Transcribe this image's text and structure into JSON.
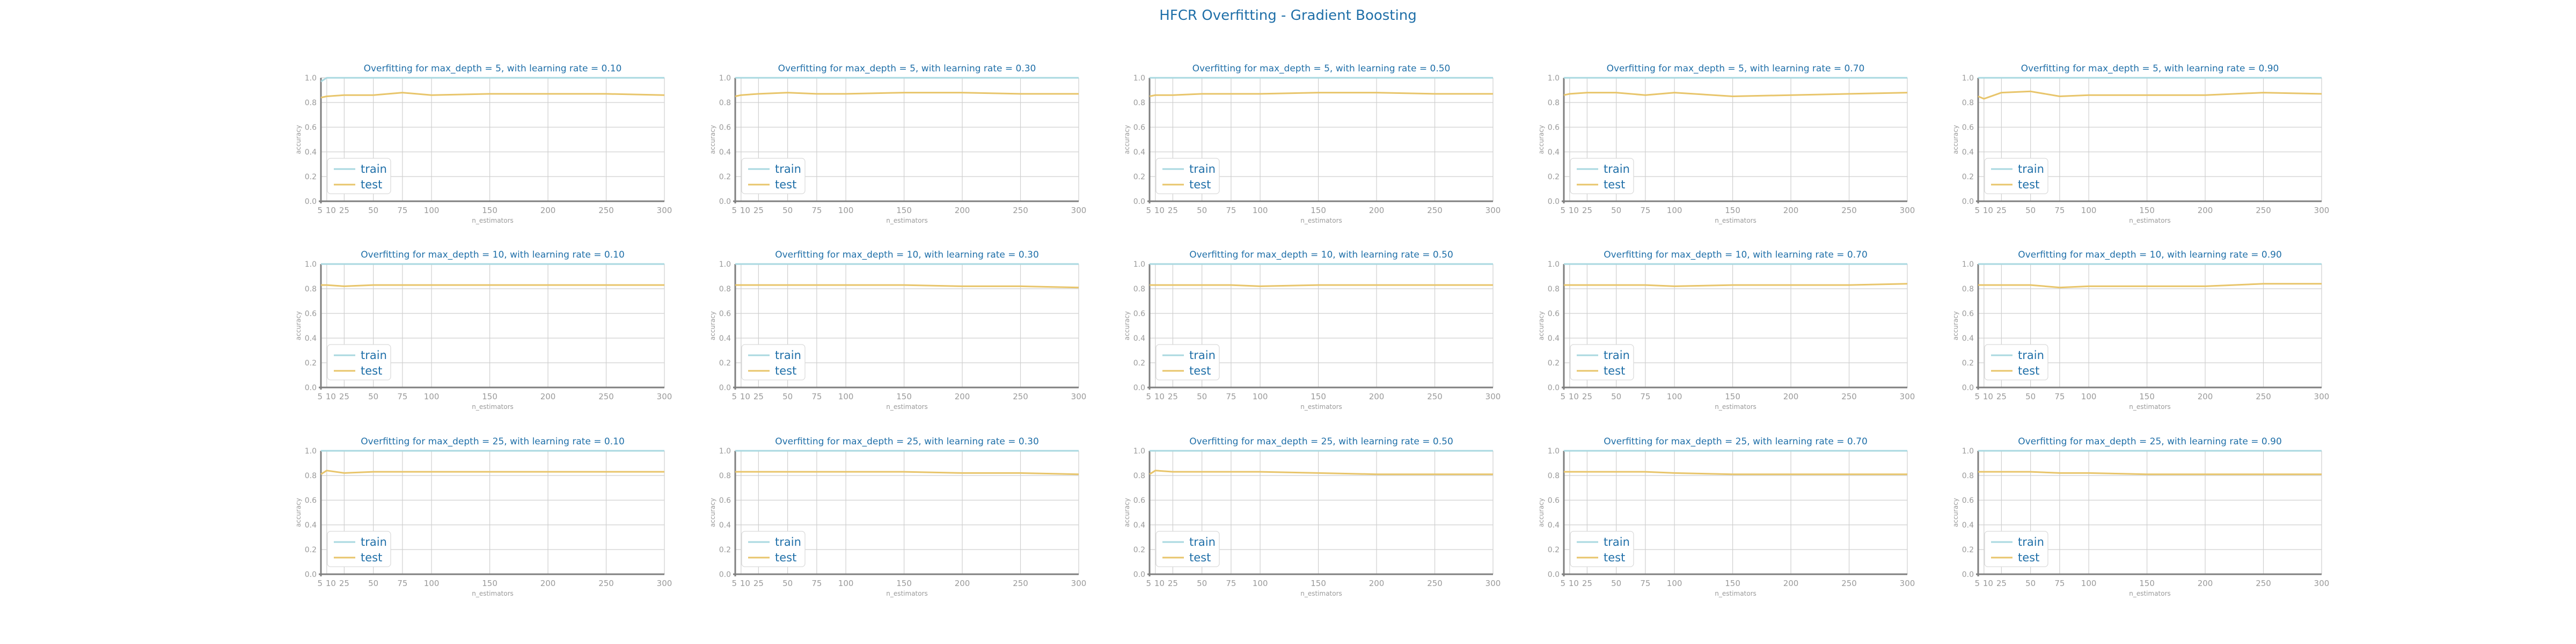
{
  "figure": {
    "title": "HFCR Overfitting - Gradient Boosting"
  },
  "style": {
    "train_color": "#A9D8E0",
    "test_color": "#E8C56B",
    "title_color": "#1F6FA8",
    "label_color": "#9a9a9a",
    "grid_color": "#cfcfcf",
    "axis_color": "#7f7f7f"
  },
  "chart_data": [
    {
      "type": "line",
      "title": "Overfitting for max_depth = 5, with learning rate = 0.10",
      "xlabel": "n_estimators",
      "ylabel": "accuracy",
      "xticks": [
        5,
        10,
        25,
        50,
        75,
        100,
        150,
        200,
        250,
        300
      ],
      "yticks": [
        0.0,
        0.2,
        0.4,
        0.6,
        0.8,
        1.0
      ],
      "xlim": [
        5,
        300
      ],
      "ylim": [
        0,
        1
      ],
      "grid": true,
      "legend": "lower-left",
      "x": [
        5,
        10,
        25,
        50,
        75,
        100,
        150,
        200,
        250,
        300
      ],
      "series": [
        {
          "name": "train",
          "values": [
            0.97,
            1.0,
            1.0,
            1.0,
            1.0,
            1.0,
            1.0,
            1.0,
            1.0,
            1.0
          ]
        },
        {
          "name": "test",
          "values": [
            0.84,
            0.85,
            0.86,
            0.86,
            0.88,
            0.86,
            0.87,
            0.87,
            0.87,
            0.86
          ]
        }
      ]
    },
    {
      "type": "line",
      "title": "Overfitting for max_depth = 5, with learning rate = 0.30",
      "xlabel": "n_estimators",
      "ylabel": "accuracy",
      "xticks": [
        5,
        10,
        25,
        50,
        75,
        100,
        150,
        200,
        250,
        300
      ],
      "yticks": [
        0.0,
        0.2,
        0.4,
        0.6,
        0.8,
        1.0
      ],
      "xlim": [
        5,
        300
      ],
      "ylim": [
        0,
        1
      ],
      "grid": true,
      "legend": "lower-left",
      "x": [
        5,
        10,
        25,
        50,
        75,
        100,
        150,
        200,
        250,
        300
      ],
      "series": [
        {
          "name": "train",
          "values": [
            1.0,
            1.0,
            1.0,
            1.0,
            1.0,
            1.0,
            1.0,
            1.0,
            1.0,
            1.0
          ]
        },
        {
          "name": "test",
          "values": [
            0.85,
            0.86,
            0.87,
            0.88,
            0.87,
            0.87,
            0.88,
            0.88,
            0.87,
            0.87
          ]
        }
      ]
    },
    {
      "type": "line",
      "title": "Overfitting for max_depth = 5, with learning rate = 0.50",
      "xlabel": "n_estimators",
      "ylabel": "accuracy",
      "xticks": [
        5,
        10,
        25,
        50,
        75,
        100,
        150,
        200,
        250,
        300
      ],
      "yticks": [
        0.0,
        0.2,
        0.4,
        0.6,
        0.8,
        1.0
      ],
      "xlim": [
        5,
        300
      ],
      "ylim": [
        0,
        1
      ],
      "grid": true,
      "legend": "lower-left",
      "x": [
        5,
        10,
        25,
        50,
        75,
        100,
        150,
        200,
        250,
        300
      ],
      "series": [
        {
          "name": "train",
          "values": [
            1.0,
            1.0,
            1.0,
            1.0,
            1.0,
            1.0,
            1.0,
            1.0,
            1.0,
            1.0
          ]
        },
        {
          "name": "test",
          "values": [
            0.85,
            0.86,
            0.86,
            0.87,
            0.87,
            0.87,
            0.88,
            0.88,
            0.87,
            0.87
          ]
        }
      ]
    },
    {
      "type": "line",
      "title": "Overfitting for max_depth = 5, with learning rate = 0.70",
      "xlabel": "n_estimators",
      "ylabel": "accuracy",
      "xticks": [
        5,
        10,
        25,
        50,
        75,
        100,
        150,
        200,
        250,
        300
      ],
      "yticks": [
        0.0,
        0.2,
        0.4,
        0.6,
        0.8,
        1.0
      ],
      "xlim": [
        5,
        300
      ],
      "ylim": [
        0,
        1
      ],
      "grid": true,
      "legend": "lower-left",
      "x": [
        5,
        10,
        25,
        50,
        75,
        100,
        150,
        200,
        250,
        300
      ],
      "series": [
        {
          "name": "train",
          "values": [
            1.0,
            1.0,
            1.0,
            1.0,
            1.0,
            1.0,
            1.0,
            1.0,
            1.0,
            1.0
          ]
        },
        {
          "name": "test",
          "values": [
            0.86,
            0.87,
            0.88,
            0.88,
            0.86,
            0.88,
            0.85,
            0.86,
            0.87,
            0.88
          ]
        }
      ]
    },
    {
      "type": "line",
      "title": "Overfitting for max_depth = 5, with learning rate = 0.90",
      "xlabel": "n_estimators",
      "ylabel": "accuracy",
      "xticks": [
        5,
        10,
        25,
        50,
        75,
        100,
        150,
        200,
        250,
        300
      ],
      "yticks": [
        0.0,
        0.2,
        0.4,
        0.6,
        0.8,
        1.0
      ],
      "xlim": [
        5,
        300
      ],
      "ylim": [
        0,
        1
      ],
      "grid": true,
      "legend": "lower-left",
      "x": [
        5,
        10,
        25,
        50,
        75,
        100,
        150,
        200,
        250,
        300
      ],
      "series": [
        {
          "name": "train",
          "values": [
            1.0,
            1.0,
            1.0,
            1.0,
            1.0,
            1.0,
            1.0,
            1.0,
            1.0,
            1.0
          ]
        },
        {
          "name": "test",
          "values": [
            0.85,
            0.83,
            0.88,
            0.89,
            0.85,
            0.86,
            0.86,
            0.86,
            0.88,
            0.87
          ]
        }
      ]
    },
    {
      "type": "line",
      "title": "Overfitting for max_depth = 10, with learning rate = 0.10",
      "xlabel": "n_estimators",
      "ylabel": "accuracy",
      "xticks": [
        5,
        10,
        25,
        50,
        75,
        100,
        150,
        200,
        250,
        300
      ],
      "yticks": [
        0.0,
        0.2,
        0.4,
        0.6,
        0.8,
        1.0
      ],
      "xlim": [
        5,
        300
      ],
      "ylim": [
        0,
        1
      ],
      "grid": true,
      "legend": "lower-left",
      "x": [
        5,
        10,
        25,
        50,
        75,
        100,
        150,
        200,
        250,
        300
      ],
      "series": [
        {
          "name": "train",
          "values": [
            1.0,
            1.0,
            1.0,
            1.0,
            1.0,
            1.0,
            1.0,
            1.0,
            1.0,
            1.0
          ]
        },
        {
          "name": "test",
          "values": [
            0.83,
            0.83,
            0.82,
            0.83,
            0.83,
            0.83,
            0.83,
            0.83,
            0.83,
            0.83
          ]
        }
      ]
    },
    {
      "type": "line",
      "title": "Overfitting for max_depth = 10, with learning rate = 0.30",
      "xlabel": "n_estimators",
      "ylabel": "accuracy",
      "xticks": [
        5,
        10,
        25,
        50,
        75,
        100,
        150,
        200,
        250,
        300
      ],
      "yticks": [
        0.0,
        0.2,
        0.4,
        0.6,
        0.8,
        1.0
      ],
      "xlim": [
        5,
        300
      ],
      "ylim": [
        0,
        1
      ],
      "grid": true,
      "legend": "lower-left",
      "x": [
        5,
        10,
        25,
        50,
        75,
        100,
        150,
        200,
        250,
        300
      ],
      "series": [
        {
          "name": "train",
          "values": [
            1.0,
            1.0,
            1.0,
            1.0,
            1.0,
            1.0,
            1.0,
            1.0,
            1.0,
            1.0
          ]
        },
        {
          "name": "test",
          "values": [
            0.83,
            0.83,
            0.83,
            0.83,
            0.83,
            0.83,
            0.83,
            0.82,
            0.82,
            0.81
          ]
        }
      ]
    },
    {
      "type": "line",
      "title": "Overfitting for max_depth = 10, with learning rate = 0.50",
      "xlabel": "n_estimators",
      "ylabel": "accuracy",
      "xticks": [
        5,
        10,
        25,
        50,
        75,
        100,
        150,
        200,
        250,
        300
      ],
      "yticks": [
        0.0,
        0.2,
        0.4,
        0.6,
        0.8,
        1.0
      ],
      "xlim": [
        5,
        300
      ],
      "ylim": [
        0,
        1
      ],
      "grid": true,
      "legend": "lower-left",
      "x": [
        5,
        10,
        25,
        50,
        75,
        100,
        150,
        200,
        250,
        300
      ],
      "series": [
        {
          "name": "train",
          "values": [
            1.0,
            1.0,
            1.0,
            1.0,
            1.0,
            1.0,
            1.0,
            1.0,
            1.0,
            1.0
          ]
        },
        {
          "name": "test",
          "values": [
            0.83,
            0.83,
            0.83,
            0.83,
            0.83,
            0.82,
            0.83,
            0.83,
            0.83,
            0.83
          ]
        }
      ]
    },
    {
      "type": "line",
      "title": "Overfitting for max_depth = 10, with learning rate = 0.70",
      "xlabel": "n_estimators",
      "ylabel": "accuracy",
      "xticks": [
        5,
        10,
        25,
        50,
        75,
        100,
        150,
        200,
        250,
        300
      ],
      "yticks": [
        0.0,
        0.2,
        0.4,
        0.6,
        0.8,
        1.0
      ],
      "xlim": [
        5,
        300
      ],
      "ylim": [
        0,
        1
      ],
      "grid": true,
      "legend": "lower-left",
      "x": [
        5,
        10,
        25,
        50,
        75,
        100,
        150,
        200,
        250,
        300
      ],
      "series": [
        {
          "name": "train",
          "values": [
            1.0,
            1.0,
            1.0,
            1.0,
            1.0,
            1.0,
            1.0,
            1.0,
            1.0,
            1.0
          ]
        },
        {
          "name": "test",
          "values": [
            0.83,
            0.83,
            0.83,
            0.83,
            0.83,
            0.82,
            0.83,
            0.83,
            0.83,
            0.84
          ]
        }
      ]
    },
    {
      "type": "line",
      "title": "Overfitting for max_depth = 10, with learning rate = 0.90",
      "xlabel": "n_estimators",
      "ylabel": "accuracy",
      "xticks": [
        5,
        10,
        25,
        50,
        75,
        100,
        150,
        200,
        250,
        300
      ],
      "yticks": [
        0.0,
        0.2,
        0.4,
        0.6,
        0.8,
        1.0
      ],
      "xlim": [
        5,
        300
      ],
      "ylim": [
        0,
        1
      ],
      "grid": true,
      "legend": "lower-left",
      "x": [
        5,
        10,
        25,
        50,
        75,
        100,
        150,
        200,
        250,
        300
      ],
      "series": [
        {
          "name": "train",
          "values": [
            1.0,
            1.0,
            1.0,
            1.0,
            1.0,
            1.0,
            1.0,
            1.0,
            1.0,
            1.0
          ]
        },
        {
          "name": "test",
          "values": [
            0.83,
            0.83,
            0.83,
            0.83,
            0.81,
            0.82,
            0.82,
            0.82,
            0.84,
            0.84
          ]
        }
      ]
    },
    {
      "type": "line",
      "title": "Overfitting for max_depth = 25, with learning rate = 0.10",
      "xlabel": "n_estimators",
      "ylabel": "accuracy",
      "xticks": [
        5,
        10,
        25,
        50,
        75,
        100,
        150,
        200,
        250,
        300
      ],
      "yticks": [
        0.0,
        0.2,
        0.4,
        0.6,
        0.8,
        1.0
      ],
      "xlim": [
        5,
        300
      ],
      "ylim": [
        0,
        1
      ],
      "grid": true,
      "legend": "lower-left",
      "x": [
        5,
        10,
        25,
        50,
        75,
        100,
        150,
        200,
        250,
        300
      ],
      "series": [
        {
          "name": "train",
          "values": [
            1.0,
            1.0,
            1.0,
            1.0,
            1.0,
            1.0,
            1.0,
            1.0,
            1.0,
            1.0
          ]
        },
        {
          "name": "test",
          "values": [
            0.81,
            0.84,
            0.82,
            0.83,
            0.83,
            0.83,
            0.83,
            0.83,
            0.83,
            0.83
          ]
        }
      ]
    },
    {
      "type": "line",
      "title": "Overfitting for max_depth = 25, with learning rate = 0.30",
      "xlabel": "n_estimators",
      "ylabel": "accuracy",
      "xticks": [
        5,
        10,
        25,
        50,
        75,
        100,
        150,
        200,
        250,
        300
      ],
      "yticks": [
        0.0,
        0.2,
        0.4,
        0.6,
        0.8,
        1.0
      ],
      "xlim": [
        5,
        300
      ],
      "ylim": [
        0,
        1
      ],
      "grid": true,
      "legend": "lower-left",
      "x": [
        5,
        10,
        25,
        50,
        75,
        100,
        150,
        200,
        250,
        300
      ],
      "series": [
        {
          "name": "train",
          "values": [
            1.0,
            1.0,
            1.0,
            1.0,
            1.0,
            1.0,
            1.0,
            1.0,
            1.0,
            1.0
          ]
        },
        {
          "name": "test",
          "values": [
            0.83,
            0.83,
            0.83,
            0.83,
            0.83,
            0.83,
            0.83,
            0.82,
            0.82,
            0.81
          ]
        }
      ]
    },
    {
      "type": "line",
      "title": "Overfitting for max_depth = 25, with learning rate = 0.50",
      "xlabel": "n_estimators",
      "ylabel": "accuracy",
      "xticks": [
        5,
        10,
        25,
        50,
        75,
        100,
        150,
        200,
        250,
        300
      ],
      "yticks": [
        0.0,
        0.2,
        0.4,
        0.6,
        0.8,
        1.0
      ],
      "xlim": [
        5,
        300
      ],
      "ylim": [
        0,
        1
      ],
      "grid": true,
      "legend": "lower-left",
      "x": [
        5,
        10,
        25,
        50,
        75,
        100,
        150,
        200,
        250,
        300
      ],
      "series": [
        {
          "name": "train",
          "values": [
            1.0,
            1.0,
            1.0,
            1.0,
            1.0,
            1.0,
            1.0,
            1.0,
            1.0,
            1.0
          ]
        },
        {
          "name": "test",
          "values": [
            0.81,
            0.84,
            0.83,
            0.83,
            0.83,
            0.83,
            0.82,
            0.81,
            0.81,
            0.81
          ]
        }
      ]
    },
    {
      "type": "line",
      "title": "Overfitting for max_depth = 25, with learning rate = 0.70",
      "xlabel": "n_estimators",
      "ylabel": "accuracy",
      "xticks": [
        5,
        10,
        25,
        50,
        75,
        100,
        150,
        200,
        250,
        300
      ],
      "yticks": [
        0.0,
        0.2,
        0.4,
        0.6,
        0.8,
        1.0
      ],
      "xlim": [
        5,
        300
      ],
      "ylim": [
        0,
        1
      ],
      "grid": true,
      "legend": "lower-left",
      "x": [
        5,
        10,
        25,
        50,
        75,
        100,
        150,
        200,
        250,
        300
      ],
      "series": [
        {
          "name": "train",
          "values": [
            1.0,
            1.0,
            1.0,
            1.0,
            1.0,
            1.0,
            1.0,
            1.0,
            1.0,
            1.0
          ]
        },
        {
          "name": "test",
          "values": [
            0.83,
            0.83,
            0.83,
            0.83,
            0.83,
            0.82,
            0.81,
            0.81,
            0.81,
            0.81
          ]
        }
      ]
    },
    {
      "type": "line",
      "title": "Overfitting for max_depth = 25, with learning rate = 0.90",
      "xlabel": "n_estimators",
      "ylabel": "accuracy",
      "xticks": [
        5,
        10,
        25,
        50,
        75,
        100,
        150,
        200,
        250,
        300
      ],
      "yticks": [
        0.0,
        0.2,
        0.4,
        0.6,
        0.8,
        1.0
      ],
      "xlim": [
        5,
        300
      ],
      "ylim": [
        0,
        1
      ],
      "grid": true,
      "legend": "lower-left",
      "x": [
        5,
        10,
        25,
        50,
        75,
        100,
        150,
        200,
        250,
        300
      ],
      "series": [
        {
          "name": "train",
          "values": [
            1.0,
            1.0,
            1.0,
            1.0,
            1.0,
            1.0,
            1.0,
            1.0,
            1.0,
            1.0
          ]
        },
        {
          "name": "test",
          "values": [
            0.83,
            0.83,
            0.83,
            0.83,
            0.82,
            0.82,
            0.81,
            0.81,
            0.81,
            0.81
          ]
        }
      ]
    }
  ]
}
